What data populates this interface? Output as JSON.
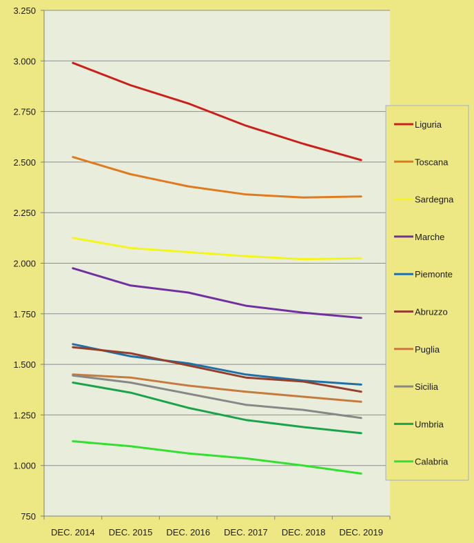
{
  "chart_data": {
    "type": "line",
    "title": "",
    "xlabel": "",
    "ylabel": "",
    "categories": [
      "DEC. 2014",
      "DEC. 2015",
      "DEC. 2016",
      "DEC. 2017",
      "DEC. 2018",
      "DEC. 2019"
    ],
    "ylim": [
      750,
      3250
    ],
    "yticks": [
      750,
      1000,
      1250,
      1500,
      1750,
      2000,
      2250,
      2500,
      2750,
      3000,
      3250
    ],
    "ytick_labels": [
      "750",
      "1.000",
      "1.250",
      "1.500",
      "1.750",
      "2.000",
      "2.250",
      "2.500",
      "2.750",
      "3.000",
      "3.250"
    ],
    "grid": "horizontal",
    "legend_position": "right",
    "plot_background": "#e9eedc",
    "page_background": "#ede784",
    "series": [
      {
        "name": "Liguria",
        "color": "#cc1f1a",
        "values": [
          2990,
          2880,
          2790,
          2680,
          2590,
          2510
        ]
      },
      {
        "name": "Toscana",
        "color": "#e07a1f",
        "values": [
          2525,
          2440,
          2380,
          2340,
          2325,
          2330
        ]
      },
      {
        "name": "Sardegna",
        "color": "#f5f51e",
        "values": [
          2125,
          2075,
          2055,
          2035,
          2020,
          2025
        ]
      },
      {
        "name": "Marche",
        "color": "#7030a0",
        "values": [
          1975,
          1890,
          1855,
          1790,
          1755,
          1730
        ]
      },
      {
        "name": "Piemonte",
        "color": "#1f6fa8",
        "values": [
          1600,
          1540,
          1505,
          1450,
          1420,
          1400
        ]
      },
      {
        "name": "Abruzzo",
        "color": "#953e2a",
        "values": [
          1585,
          1555,
          1495,
          1435,
          1415,
          1365
        ]
      },
      {
        "name": "Puglia",
        "color": "#c77a3e",
        "values": [
          1450,
          1435,
          1395,
          1365,
          1340,
          1315
        ]
      },
      {
        "name": "Sicilia",
        "color": "#878787",
        "values": [
          1445,
          1410,
          1355,
          1300,
          1275,
          1235
        ]
      },
      {
        "name": "Umbria",
        "color": "#1aa34a",
        "values": [
          1410,
          1360,
          1285,
          1225,
          1190,
          1160
        ]
      },
      {
        "name": "Calabria",
        "color": "#33e02f",
        "values": [
          1120,
          1095,
          1060,
          1035,
          1000,
          960
        ]
      }
    ]
  }
}
